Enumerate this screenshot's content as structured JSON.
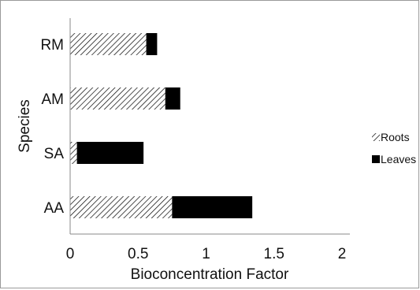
{
  "chart_data": {
    "type": "bar",
    "orientation": "horizontal",
    "stacked": true,
    "categories": [
      "AA",
      "SA",
      "AM",
      "RM"
    ],
    "series": [
      {
        "name": "Roots",
        "values": [
          0.75,
          0.05,
          0.7,
          0.56
        ],
        "pattern": "diagonal-hatch",
        "color": "#000000"
      },
      {
        "name": "Leaves",
        "values": [
          0.59,
          0.49,
          0.11,
          0.08
        ],
        "pattern": "solid",
        "color": "#000000"
      }
    ],
    "xlabel": "Bioconcentration Factor",
    "ylabel": "Species",
    "xlim": [
      0,
      2
    ],
    "xticks": [
      "0",
      "0.5",
      "1",
      "1.5",
      "2"
    ],
    "grid": false,
    "legend": "right"
  }
}
